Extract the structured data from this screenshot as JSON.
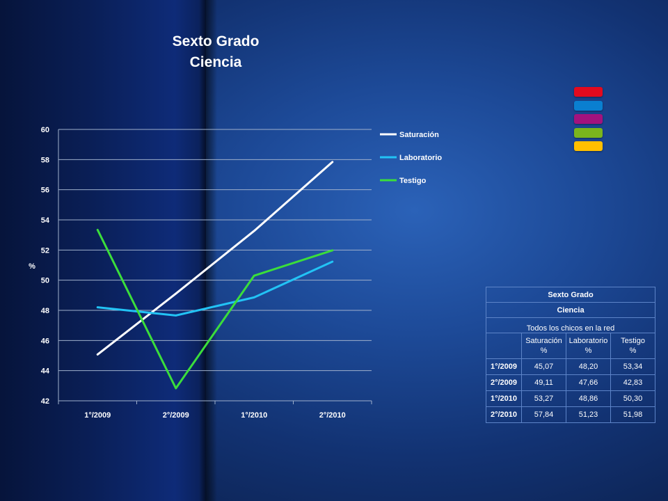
{
  "title": {
    "line1": "Sexto Grado",
    "line2": "Ciencia"
  },
  "color_swatches": [
    "#e30a1e",
    "#0a7fd0",
    "#a3127e",
    "#7ab51d",
    "#ffbf00"
  ],
  "chart_data": {
    "type": "line",
    "categories": [
      "1°/2009",
      "2°/2009",
      "1°/2010",
      "2°/2010"
    ],
    "series": [
      {
        "name": "Saturación",
        "color": "#ffffff",
        "values": [
          45.07,
          49.11,
          53.27,
          57.84
        ]
      },
      {
        "name": "Laboratorio",
        "color": "#22c3f5",
        "values": [
          48.2,
          47.66,
          48.86,
          51.23
        ]
      },
      {
        "name": "Testigo",
        "color": "#3bde3b",
        "values": [
          53.34,
          42.83,
          50.3,
          51.98
        ]
      }
    ],
    "ylabel": "%",
    "ylim": [
      42,
      60
    ],
    "yticks": [
      "42",
      "44",
      "46",
      "48",
      "50",
      "52",
      "54",
      "56",
      "58",
      "60"
    ],
    "grid": true,
    "legend": "right"
  },
  "table": {
    "title": "Sexto Grado",
    "subject": "Ciencia",
    "group": "Todos los chicos en la red",
    "headers": [
      [
        "Saturación",
        "%"
      ],
      [
        "Laboratorio",
        "%"
      ],
      [
        "Testigo",
        "%"
      ]
    ],
    "rows": [
      {
        "label": "1°/2009",
        "values": [
          "45,07",
          "48,20",
          "53,34"
        ]
      },
      {
        "label": "2°/2009",
        "values": [
          "49,11",
          "47,66",
          "42,83"
        ]
      },
      {
        "label": "1°/2010",
        "values": [
          "53,27",
          "48,86",
          "50,30"
        ]
      },
      {
        "label": "2°/2010",
        "values": [
          "57,84",
          "51,23",
          "51,98"
        ]
      }
    ]
  }
}
